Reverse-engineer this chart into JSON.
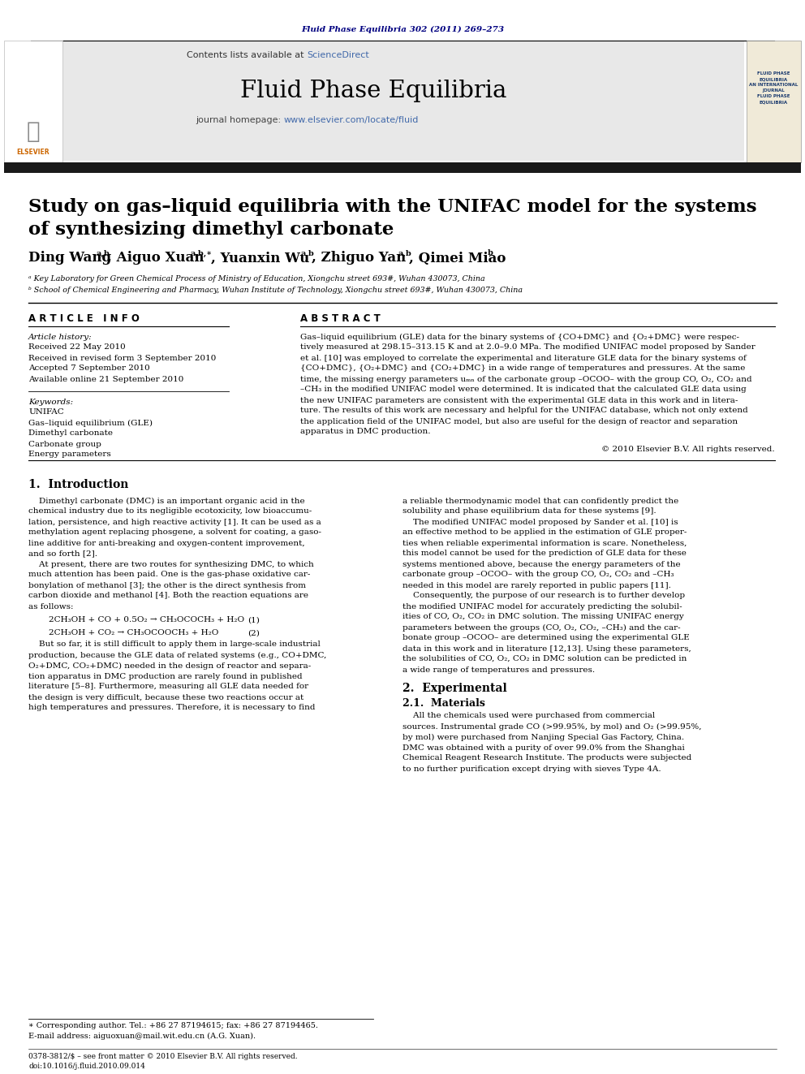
{
  "page_width": 9.92,
  "page_height": 13.23,
  "bg_color": "#ffffff",
  "top_journal_ref": "Fluid Phase Equilibria 302 (2011) 269–273",
  "journal_ref_color": "#000080",
  "header_bg": "#e8e8e8",
  "header_text_contents": "Contents lists available at",
  "sciencedirect_color": "#4169aa",
  "journal_name": "Fluid Phase Equilibria",
  "journal_url_color": "#4169aa",
  "article_info_header": "A R T I C L E   I N F O",
  "abstract_header": "A B S T R A C T",
  "article_history_label": "Article history:",
  "received": "Received 22 May 2010",
  "received_revised": "Received in revised form 3 September 2010",
  "accepted": "Accepted 7 September 2010",
  "available": "Available online 21 September 2010",
  "keywords_label": "Keywords:",
  "keyword1": "UNIFAC",
  "keyword2": "Gas–liquid equilibrium (GLE)",
  "keyword3": "Dimethyl carbonate",
  "keyword4": "Carbonate group",
  "keyword5": "Energy parameters",
  "copyright": "© 2010 Elsevier B.V. All rights reserved.",
  "section1_header": "1.  Introduction",
  "section2_header": "2.  Experimental",
  "section21_header": "2.1.  Materials",
  "affil_a": "ᵃ Key Laboratory for Green Chemical Process of Ministry of Education, Xiongchu street 693#, Wuhan 430073, China",
  "affil_b": "ᵇ School of Chemical Engineering and Pharmacy, Wuhan Institute of Technology, Xiongchu street 693#, Wuhan 430073, China",
  "equation1": "2CH₃OH + CO + 0.5O₂ → CH₃OCOCH₃ + H₂O",
  "eq1_number": "(1)",
  "equation2": "2CH₃OH + CO₂ → CH₃OCOOCH₃ + H₂O",
  "eq2_number": "(2)",
  "footnote_star": "∗ Corresponding author. Tel.: +86 27 87194615; fax: +86 27 87194465.",
  "footnote_email": "E-mail address: aiguoxuan@mail.wit.edu.cn (A.G. Xuan).",
  "footer_issn": "0378-3812/$ – see front matter © 2010 Elsevier B.V. All rights reserved.",
  "footer_doi": "doi:10.1016/j.fluid.2010.09.014",
  "black_bar_color": "#1a1a1a",
  "abstract_lines": [
    "Gas–liquid equilibrium (GLE) data for the binary systems of {CO+DMC} and {O₂+DMC} were respec-",
    "tively measured at 298.15–313.15 K and at 2.0–9.0 MPa. The modified UNIFAC model proposed by Sander",
    "et al. [10] was employed to correlate the experimental and literature GLE data for the binary systems of",
    "{CO+DMC}, {O₂+DMC} and {CO₂+DMC} in a wide range of temperatures and pressures. At the same",
    "time, the missing energy parameters uₘₙ of the carbonate group –OCOO– with the group CO, O₂, CO₂ and",
    "–CH₃ in the modified UNIFAC model were determined. It is indicated that the calculated GLE data using",
    "the new UNIFAC parameters are consistent with the experimental GLE data in this work and in litera-",
    "ture. The results of this work are necessary and helpful for the UNIFAC database, which not only extend",
    "the application field of the UNIFAC model, but also are useful for the design of reactor and separation",
    "apparatus in DMC production."
  ],
  "intro1_lines": [
    "    Dimethyl carbonate (DMC) is an important organic acid in the",
    "chemical industry due to its negligible ecotoxicity, low bioaccumu-",
    "lation, persistence, and high reactive activity [1]. It can be used as a",
    "methylation agent replacing phosgene, a solvent for coating, a gaso-",
    "line additive for anti-breaking and oxygen-content improvement,",
    "and so forth [2].",
    "    At present, there are two routes for synthesizing DMC, to which",
    "much attention has been paid. One is the gas-phase oxidative car-",
    "bonylation of methanol [3]; the other is the direct synthesis from",
    "carbon dioxide and methanol [4]. Both the reaction equations are",
    "as follows:"
  ],
  "intro1_cont": [
    "    But so far, it is still difficult to apply them in large-scale industrial",
    "production, because the GLE data of related systems (e.g., CO+DMC,",
    "O₂+DMC, CO₂+DMC) needed in the design of reactor and separa-",
    "tion apparatus in DMC production are rarely found in published",
    "literature [5–8]. Furthermore, measuring all GLE data needed for",
    "the design is very difficult, because these two reactions occur at",
    "high temperatures and pressures. Therefore, it is necessary to find"
  ],
  "intro2_lines": [
    "a reliable thermodynamic model that can confidently predict the",
    "solubility and phase equilibrium data for these systems [9].",
    "    The modified UNIFAC model proposed by Sander et al. [10] is",
    "an effective method to be applied in the estimation of GLE proper-",
    "ties when reliable experimental information is scare. Nonetheless,",
    "this model cannot be used for the prediction of GLE data for these",
    "systems mentioned above, because the energy parameters of the",
    "carbonate group –OCOO– with the group CO, O₂, CO₂ and –CH₃",
    "needed in this model are rarely reported in public papers [11].",
    "    Consequently, the purpose of our research is to further develop",
    "the modified UNIFAC model for accurately predicting the solubil-",
    "ities of CO, O₂, CO₂ in DMC solution. The missing UNIFAC energy",
    "parameters between the groups (CO, O₂, CO₂, –CH₃) and the car-",
    "bonate group –OCOO– are determined using the experimental GLE",
    "data in this work and in literature [12,13]. Using these parameters,",
    "the solubilities of CO, O₂, CO₂ in DMC solution can be predicted in",
    "a wide range of temperatures and pressures."
  ],
  "mat_lines": [
    "    All the chemicals used were purchased from commercial",
    "sources. Instrumental grade CO (>99.95%, by mol) and O₂ (>99.95%,",
    "by mol) were purchased from Nanjing Special Gas Factory, China.",
    "DMC was obtained with a purity of over 99.0% from the Shanghai",
    "Chemical Reagent Research Institute. The products were subjected",
    "to no further purification except drying with sieves Type 4A."
  ]
}
